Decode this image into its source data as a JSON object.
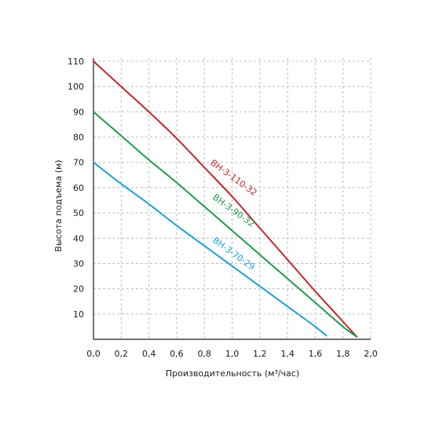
{
  "chart_data": {
    "type": "line",
    "xlabel": "Производительность (м³/час)",
    "ylabel": "Высота подъема (м)",
    "xlim": [
      0,
      2.0
    ],
    "ylim": [
      0,
      110
    ],
    "x_ticks": [
      "0,0",
      "0,2",
      "0,4",
      "0,6",
      "0,8",
      "1,0",
      "1,2",
      "1,4",
      "1,6",
      "1,8",
      "2,0"
    ],
    "y_ticks": [
      "10",
      "20",
      "30",
      "40",
      "50",
      "60",
      "70",
      "80",
      "90",
      "100",
      "110"
    ],
    "grid": true,
    "series": [
      {
        "name": "ВН-3-110-32",
        "color": "#c0272d",
        "points": [
          [
            0.0,
            110
          ],
          [
            0.2,
            100
          ],
          [
            0.4,
            90
          ],
          [
            0.6,
            79.5
          ],
          [
            0.8,
            68
          ],
          [
            1.0,
            56.5
          ],
          [
            1.2,
            44
          ],
          [
            1.4,
            31.5
          ],
          [
            1.6,
            19
          ],
          [
            1.8,
            7
          ],
          [
            1.9,
            1
          ]
        ]
      },
      {
        "name": "ВН-3-90-32",
        "color": "#1f9a4b",
        "points": [
          [
            0.0,
            90
          ],
          [
            0.2,
            80.5
          ],
          [
            0.4,
            71
          ],
          [
            0.6,
            62
          ],
          [
            0.8,
            52.5
          ],
          [
            1.0,
            43
          ],
          [
            1.2,
            33.5
          ],
          [
            1.4,
            24
          ],
          [
            1.6,
            14.5
          ],
          [
            1.8,
            5
          ],
          [
            1.9,
            1
          ]
        ]
      },
      {
        "name": "ВН-3-70-29",
        "color": "#1ba1d4",
        "points": [
          [
            0.0,
            70
          ],
          [
            0.2,
            61.5
          ],
          [
            0.4,
            53.5
          ],
          [
            0.6,
            45
          ],
          [
            0.8,
            37
          ],
          [
            1.0,
            29
          ],
          [
            1.2,
            21
          ],
          [
            1.4,
            13
          ],
          [
            1.6,
            5
          ],
          [
            1.68,
            1.5
          ]
        ]
      }
    ],
    "series_labels": [
      {
        "text": "ВН-3-110-32",
        "x": 1.0,
        "y": 63,
        "rotate": 36
      },
      {
        "text": "ВН-3-90-32",
        "x": 1.0,
        "y": 50,
        "rotate": 36
      },
      {
        "text": "ВН-3-70-29",
        "x": 1.0,
        "y": 33,
        "rotate": 36
      }
    ]
  }
}
